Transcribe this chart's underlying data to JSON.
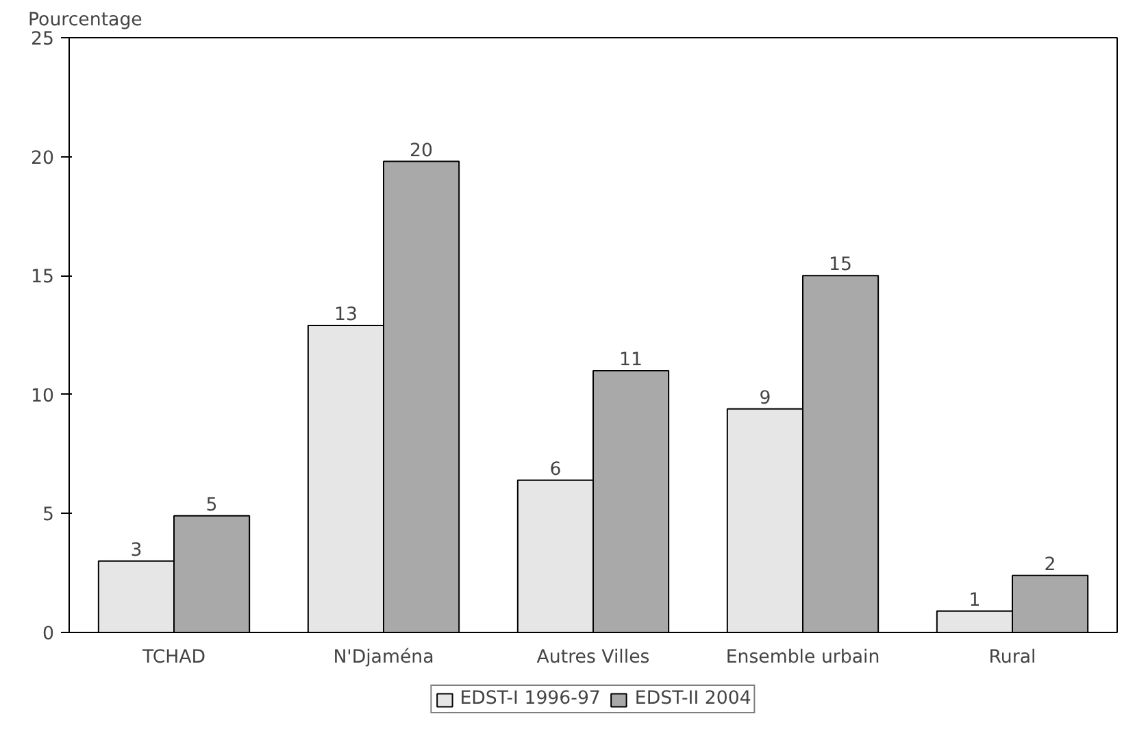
{
  "chart_data": {
    "type": "bar",
    "ylabel": "Pourcentage",
    "categories": [
      "TCHAD",
      "N'Djaména",
      "Autres Villes",
      "Ensemble urbain",
      "Rural"
    ],
    "series": [
      {
        "name": "EDST-I 1996-97",
        "color": "#e6e6e6",
        "values": [
          3.0,
          12.9,
          6.4,
          9.4,
          0.9
        ],
        "value_labels": [
          "3",
          "13",
          "6",
          "9",
          "1"
        ]
      },
      {
        "name": "EDST-II 2004",
        "color": "#a9a9a9",
        "values": [
          4.9,
          19.8,
          11.0,
          15.0,
          2.4
        ],
        "value_labels": [
          "5",
          "20",
          "11",
          "15",
          "2"
        ]
      }
    ],
    "ylim": [
      0,
      25
    ],
    "yticks": [
      0,
      5,
      10,
      15,
      20,
      25
    ],
    "grid": false,
    "legend": "bottom"
  }
}
